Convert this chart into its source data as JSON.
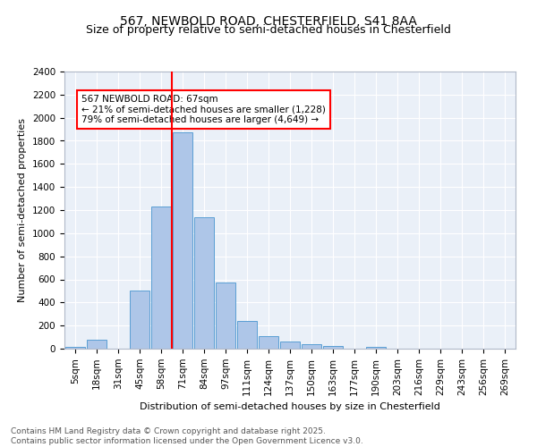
{
  "title1": "567, NEWBOLD ROAD, CHESTERFIELD, S41 8AA",
  "title2": "Size of property relative to semi-detached houses in Chesterfield",
  "xlabel": "Distribution of semi-detached houses by size in Chesterfield",
  "ylabel": "Number of semi-detached properties",
  "categories": [
    "5sqm",
    "18sqm",
    "31sqm",
    "45sqm",
    "58sqm",
    "71sqm",
    "84sqm",
    "97sqm",
    "111sqm",
    "124sqm",
    "137sqm",
    "150sqm",
    "163sqm",
    "177sqm",
    "190sqm",
    "203sqm",
    "216sqm",
    "229sqm",
    "243sqm",
    "256sqm",
    "269sqm"
  ],
  "values": [
    15,
    75,
    0,
    500,
    1230,
    1870,
    1140,
    575,
    240,
    108,
    60,
    35,
    20,
    0,
    15,
    0,
    0,
    0,
    0,
    0,
    0
  ],
  "bar_color": "#aec6e8",
  "bar_edge_color": "#5a9fd4",
  "marker_color": "red",
  "annotation_text": "567 NEWBOLD ROAD: 67sqm\n← 21% of semi-detached houses are smaller (1,228)\n79% of semi-detached houses are larger (4,649) →",
  "ylim": [
    0,
    2400
  ],
  "yticks": [
    0,
    200,
    400,
    600,
    800,
    1000,
    1200,
    1400,
    1600,
    1800,
    2000,
    2200,
    2400
  ],
  "bg_color": "#eaf0f8",
  "footer_text": "Contains HM Land Registry data © Crown copyright and database right 2025.\nContains public sector information licensed under the Open Government Licence v3.0.",
  "title1_fontsize": 10,
  "title2_fontsize": 9,
  "xlabel_fontsize": 8,
  "ylabel_fontsize": 8,
  "tick_fontsize": 7.5,
  "annotation_fontsize": 7.5,
  "footer_fontsize": 6.5,
  "red_line_x": 4.5
}
